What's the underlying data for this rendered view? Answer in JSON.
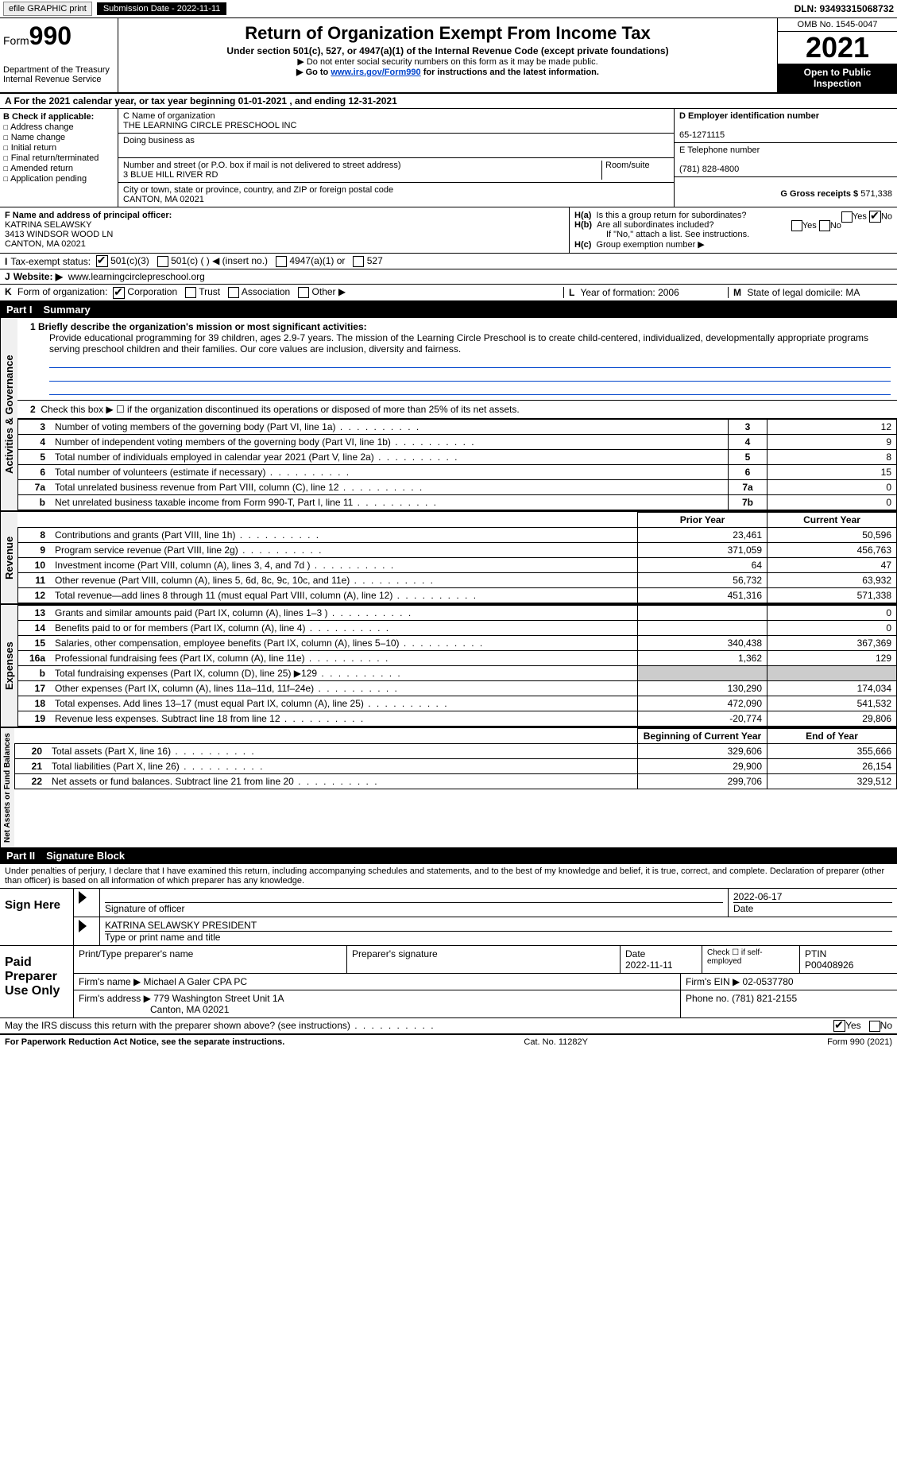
{
  "topbar": {
    "efile": "efile GRAPHIC print",
    "submission_label": "Submission Date - 2022-11-11",
    "dln_label": "DLN: 93493315068732"
  },
  "header": {
    "form_prefix": "Form",
    "form_number": "990",
    "dept": "Department of the Treasury",
    "irs": "Internal Revenue Service",
    "title": "Return of Organization Exempt From Income Tax",
    "subtitle": "Under section 501(c), 527, or 4947(a)(1) of the Internal Revenue Code (except private foundations)",
    "note1": "▶ Do not enter social security numbers on this form as it may be made public.",
    "note2_pre": "▶ Go to ",
    "note2_link": "www.irs.gov/Form990",
    "note2_post": " for instructions and the latest information.",
    "omb": "OMB No. 1545-0047",
    "year": "2021",
    "inspection": "Open to Public Inspection"
  },
  "rowA": "A For the 2021 calendar year, or tax year beginning 01-01-2021    , and ending 12-31-2021",
  "boxB": {
    "label": "B Check if applicable:",
    "items": [
      "Address change",
      "Name change",
      "Initial return",
      "Final return/terminated",
      "Amended return",
      "Application pending"
    ]
  },
  "boxC": {
    "name_label": "C Name of organization",
    "name": "THE LEARNING CIRCLE PRESCHOOL INC",
    "dba_label": "Doing business as",
    "dba": "",
    "street_label": "Number and street (or P.O. box if mail is not delivered to street address)",
    "room_label": "Room/suite",
    "street": "3 BLUE HILL RIVER RD",
    "city_label": "City or town, state or province, country, and ZIP or foreign postal code",
    "city": "CANTON, MA  02021"
  },
  "boxD": {
    "ein_label": "D Employer identification number",
    "ein": "65-1271115",
    "phone_label": "E Telephone number",
    "phone": "(781) 828-4800",
    "gross_label": "G Gross receipts $",
    "gross": "571,338"
  },
  "boxF": {
    "label": "F Name and address of principal officer:",
    "name": "KATRINA SELAWSKY",
    "addr1": "3413 WINDSOR WOOD LN",
    "addr2": "CANTON, MA  02021"
  },
  "boxH": {
    "a_label": "H(a)",
    "a_text": "Is this a group return for subordinates?",
    "a_yes": "Yes",
    "a_no": "No",
    "b_label": "H(b)",
    "b_text": "Are all subordinates included?",
    "b_note": "If \"No,\" attach a list. See instructions.",
    "c_label": "H(c)",
    "c_text": "Group exemption number ▶"
  },
  "rowI": {
    "label": "I",
    "text": "Tax-exempt status:",
    "opts": [
      "501(c)(3)",
      "501(c) (  ) ◀ (insert no.)",
      "4947(a)(1) or",
      "527"
    ]
  },
  "rowJ": {
    "label": "J",
    "text": "Website: ▶",
    "url": "www.learningcirclepreschool.org"
  },
  "rowK": {
    "label": "K",
    "text": "Form of organization:",
    "opts": [
      "Corporation",
      "Trust",
      "Association",
      "Other ▶"
    ]
  },
  "rowL": {
    "l_label": "L",
    "l_text": "Year of formation: 2006",
    "m_label": "M",
    "m_text": "State of legal domicile: MA"
  },
  "part1": {
    "num": "Part I",
    "title": "Summary"
  },
  "mission": {
    "q1": "1 Briefly describe the organization's mission or most significant activities:",
    "text": "Provide educational programming for 39 children, ages 2.9-7 years. The mission of the Learning Circle Preschool is to create child-centered, individualized, developmentally appropriate programs serving preschool children and their families. Our core values are inclusion, diversity and fairness."
  },
  "governance": {
    "tab": "Activities & Governance",
    "q2": "Check this box ▶ ☐ if the organization discontinued its operations or disposed of more than 25% of its net assets.",
    "rows": [
      {
        "n": "3",
        "desc": "Number of voting members of the governing body (Part VI, line 1a)",
        "box": "3",
        "val": "12"
      },
      {
        "n": "4",
        "desc": "Number of independent voting members of the governing body (Part VI, line 1b)",
        "box": "4",
        "val": "9"
      },
      {
        "n": "5",
        "desc": "Total number of individuals employed in calendar year 2021 (Part V, line 2a)",
        "box": "5",
        "val": "8"
      },
      {
        "n": "6",
        "desc": "Total number of volunteers (estimate if necessary)",
        "box": "6",
        "val": "15"
      },
      {
        "n": "7a",
        "desc": "Total unrelated business revenue from Part VIII, column (C), line 12",
        "box": "7a",
        "val": "0"
      },
      {
        "n": "b",
        "desc": "Net unrelated business taxable income from Form 990-T, Part I, line 11",
        "box": "7b",
        "val": "0"
      }
    ]
  },
  "revenue": {
    "tab": "Revenue",
    "head_prior": "Prior Year",
    "head_current": "Current Year",
    "rows": [
      {
        "n": "8",
        "desc": "Contributions and grants (Part VIII, line 1h)",
        "py": "23,461",
        "cy": "50,596"
      },
      {
        "n": "9",
        "desc": "Program service revenue (Part VIII, line 2g)",
        "py": "371,059",
        "cy": "456,763"
      },
      {
        "n": "10",
        "desc": "Investment income (Part VIII, column (A), lines 3, 4, and 7d )",
        "py": "64",
        "cy": "47"
      },
      {
        "n": "11",
        "desc": "Other revenue (Part VIII, column (A), lines 5, 6d, 8c, 9c, 10c, and 11e)",
        "py": "56,732",
        "cy": "63,932"
      },
      {
        "n": "12",
        "desc": "Total revenue—add lines 8 through 11 (must equal Part VIII, column (A), line 12)",
        "py": "451,316",
        "cy": "571,338"
      }
    ]
  },
  "expenses": {
    "tab": "Expenses",
    "rows": [
      {
        "n": "13",
        "desc": "Grants and similar amounts paid (Part IX, column (A), lines 1–3 )",
        "py": "",
        "cy": "0"
      },
      {
        "n": "14",
        "desc": "Benefits paid to or for members (Part IX, column (A), line 4)",
        "py": "",
        "cy": "0"
      },
      {
        "n": "15",
        "desc": "Salaries, other compensation, employee benefits (Part IX, column (A), lines 5–10)",
        "py": "340,438",
        "cy": "367,369"
      },
      {
        "n": "16a",
        "desc": "Professional fundraising fees (Part IX, column (A), line 11e)",
        "py": "1,362",
        "cy": "129"
      },
      {
        "n": "b",
        "desc": "Total fundraising expenses (Part IX, column (D), line 25) ▶129",
        "py": "grey",
        "cy": "grey"
      },
      {
        "n": "17",
        "desc": "Other expenses (Part IX, column (A), lines 11a–11d, 11f–24e)",
        "py": "130,290",
        "cy": "174,034"
      },
      {
        "n": "18",
        "desc": "Total expenses. Add lines 13–17 (must equal Part IX, column (A), line 25)",
        "py": "472,090",
        "cy": "541,532"
      },
      {
        "n": "19",
        "desc": "Revenue less expenses. Subtract line 18 from line 12",
        "py": "-20,774",
        "cy": "29,806"
      }
    ]
  },
  "netassets": {
    "tab": "Net Assets or Fund Balances",
    "head_begin": "Beginning of Current Year",
    "head_end": "End of Year",
    "rows": [
      {
        "n": "20",
        "desc": "Total assets (Part X, line 16)",
        "py": "329,606",
        "cy": "355,666"
      },
      {
        "n": "21",
        "desc": "Total liabilities (Part X, line 26)",
        "py": "29,900",
        "cy": "26,154"
      },
      {
        "n": "22",
        "desc": "Net assets or fund balances. Subtract line 21 from line 20",
        "py": "299,706",
        "cy": "329,512"
      }
    ]
  },
  "part2": {
    "num": "Part II",
    "title": "Signature Block",
    "perjury": "Under penalties of perjury, I declare that I have examined this return, including accompanying schedules and statements, and to the best of my knowledge and belief, it is true, correct, and complete. Declaration of preparer (other than officer) is based on all information of which preparer has any knowledge."
  },
  "sign": {
    "label": "Sign Here",
    "sig_officer": "Signature of officer",
    "date": "2022-06-17",
    "date_label": "Date",
    "name": "KATRINA SELAWSKY PRESIDENT",
    "name_label": "Type or print name and title"
  },
  "preparer": {
    "label": "Paid Preparer Use Only",
    "h1": "Print/Type preparer's name",
    "h2": "Preparer's signature",
    "h3": "Date",
    "h3v": "2022-11-11",
    "h4": "Check ☐ if self-employed",
    "h5": "PTIN",
    "h5v": "P00408926",
    "firm_name_label": "Firm's name    ▶",
    "firm_name": "Michael A Galer CPA PC",
    "firm_ein_label": "Firm's EIN ▶",
    "firm_ein": "02-0537780",
    "firm_addr_label": "Firm's address ▶",
    "firm_addr1": "779 Washington Street Unit 1A",
    "firm_addr2": "Canton, MA  02021",
    "phone_label": "Phone no.",
    "phone": "(781) 821-2155"
  },
  "discuss": {
    "text": "May the IRS discuss this return with the preparer shown above? (see instructions)",
    "yes": "Yes",
    "no": "No"
  },
  "footer": {
    "left": "For Paperwork Reduction Act Notice, see the separate instructions.",
    "mid": "Cat. No. 11282Y",
    "right": "Form 990 (2021)"
  }
}
